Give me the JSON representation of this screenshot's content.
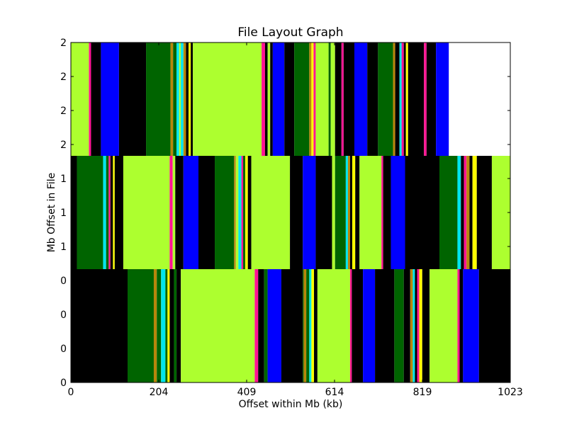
{
  "chart_data": {
    "type": "heatmap",
    "title": "File Layout Graph",
    "xlabel": "Offset within Mb (kb)",
    "ylabel": "Mb Offset in File",
    "xlim": [
      0,
      1023
    ],
    "x_ticks": [
      "0",
      "204",
      "409",
      "614",
      "819",
      "1023"
    ],
    "y_ticks": [
      "0",
      "0",
      "0",
      "0",
      "1",
      "1",
      "1",
      "2",
      "2",
      "2",
      "2"
    ],
    "palette": {
      "lime": "#adff2f",
      "green": "#006400",
      "blue": "#0000ff",
      "black": "#000000",
      "pink": "#ff1493",
      "cyan": "#00e5ee",
      "gold": "#b8860b",
      "yellow": "#ffff00",
      "white": "#ffffff"
    },
    "rows": [
      {
        "mb": 0,
        "segments": [
          [
            0,
            132,
            "black"
          ],
          [
            132,
            193,
            "green"
          ],
          [
            193,
            200,
            "gold"
          ],
          [
            200,
            210,
            "green"
          ],
          [
            210,
            220,
            "cyan"
          ],
          [
            220,
            225,
            "green"
          ],
          [
            225,
            230,
            "yellow"
          ],
          [
            230,
            240,
            "black"
          ],
          [
            240,
            246,
            "green"
          ],
          [
            246,
            256,
            "black"
          ],
          [
            256,
            428,
            "lime"
          ],
          [
            428,
            436,
            "pink"
          ],
          [
            436,
            450,
            "black"
          ],
          [
            450,
            458,
            "green"
          ],
          [
            458,
            490,
            "blue"
          ],
          [
            490,
            540,
            "black"
          ],
          [
            540,
            542,
            "green"
          ],
          [
            542,
            548,
            "gold"
          ],
          [
            548,
            555,
            "green"
          ],
          [
            555,
            560,
            "cyan"
          ],
          [
            560,
            566,
            "yellow"
          ],
          [
            566,
            574,
            "black"
          ],
          [
            574,
            650,
            "lime"
          ],
          [
            650,
            654,
            "pink"
          ],
          [
            654,
            680,
            "black"
          ],
          [
            680,
            708,
            "blue"
          ],
          [
            708,
            753,
            "black"
          ],
          [
            753,
            775,
            "green"
          ],
          [
            775,
            790,
            "black"
          ],
          [
            790,
            796,
            "gold"
          ],
          [
            796,
            801,
            "cyan"
          ],
          [
            801,
            806,
            "black"
          ],
          [
            806,
            811,
            "pink"
          ],
          [
            811,
            818,
            "yellow"
          ],
          [
            818,
            835,
            "black"
          ],
          [
            835,
            900,
            "lime"
          ],
          [
            900,
            905,
            "pink"
          ],
          [
            905,
            913,
            "black"
          ],
          [
            913,
            950,
            "blue"
          ],
          [
            950,
            1023,
            "black"
          ]
        ]
      },
      {
        "mb": 1,
        "segments": [
          [
            0,
            14,
            "black"
          ],
          [
            14,
            75,
            "green"
          ],
          [
            75,
            82,
            "cyan"
          ],
          [
            82,
            88,
            "green"
          ],
          [
            88,
            92,
            "pink"
          ],
          [
            92,
            98,
            "black"
          ],
          [
            98,
            102,
            "yellow"
          ],
          [
            102,
            122,
            "black"
          ],
          [
            122,
            230,
            "lime"
          ],
          [
            230,
            237,
            "pink"
          ],
          [
            237,
            243,
            "lime"
          ],
          [
            243,
            262,
            "black"
          ],
          [
            262,
            297,
            "blue"
          ],
          [
            297,
            335,
            "black"
          ],
          [
            335,
            380,
            "green"
          ],
          [
            380,
            384,
            "gold"
          ],
          [
            384,
            390,
            "lime"
          ],
          [
            390,
            397,
            "cyan"
          ],
          [
            397,
            401,
            "pink"
          ],
          [
            401,
            406,
            "green"
          ],
          [
            406,
            412,
            "yellow"
          ],
          [
            412,
            420,
            "black"
          ],
          [
            420,
            510,
            "lime"
          ],
          [
            510,
            540,
            "black"
          ],
          [
            540,
            570,
            "blue"
          ],
          [
            570,
            608,
            "black"
          ],
          [
            608,
            615,
            "lime"
          ],
          [
            615,
            640,
            "green"
          ],
          [
            640,
            645,
            "cyan"
          ],
          [
            645,
            650,
            "gold"
          ],
          [
            650,
            655,
            "black"
          ],
          [
            655,
            662,
            "yellow"
          ],
          [
            662,
            672,
            "black"
          ],
          [
            672,
            723,
            "lime"
          ],
          [
            723,
            727,
            "pink"
          ],
          [
            727,
            745,
            "black"
          ],
          [
            745,
            778,
            "blue"
          ],
          [
            778,
            858,
            "black"
          ],
          [
            858,
            900,
            "green"
          ],
          [
            900,
            908,
            "cyan"
          ],
          [
            908,
            915,
            "black"
          ],
          [
            915,
            921,
            "pink"
          ],
          [
            921,
            928,
            "gold"
          ],
          [
            928,
            935,
            "black"
          ],
          [
            935,
            945,
            "yellow"
          ],
          [
            945,
            980,
            "black"
          ],
          [
            980,
            1023,
            "lime"
          ]
        ]
      },
      {
        "mb": 2,
        "segments": [
          [
            0,
            42,
            "lime"
          ],
          [
            42,
            47,
            "pink"
          ],
          [
            47,
            70,
            "black"
          ],
          [
            70,
            112,
            "blue"
          ],
          [
            112,
            175,
            "black"
          ],
          [
            175,
            232,
            "green"
          ],
          [
            232,
            238,
            "gold"
          ],
          [
            238,
            246,
            "green"
          ],
          [
            246,
            252,
            "cyan"
          ],
          [
            252,
            256,
            "lime"
          ],
          [
            256,
            262,
            "cyan"
          ],
          [
            262,
            268,
            "gold"
          ],
          [
            268,
            274,
            "black"
          ],
          [
            274,
            279,
            "yellow"
          ],
          [
            279,
            284,
            "black"
          ],
          [
            284,
            444,
            "lime"
          ],
          [
            444,
            452,
            "pink"
          ],
          [
            452,
            458,
            "black"
          ],
          [
            458,
            464,
            "lime"
          ],
          [
            464,
            470,
            "black"
          ],
          [
            470,
            497,
            "blue"
          ],
          [
            497,
            520,
            "black"
          ],
          [
            520,
            555,
            "green"
          ],
          [
            555,
            560,
            "gold"
          ],
          [
            560,
            565,
            "yellow"
          ],
          [
            565,
            570,
            "pink"
          ],
          [
            570,
            600,
            "lime"
          ],
          [
            600,
            605,
            "green"
          ],
          [
            605,
            615,
            "lime"
          ],
          [
            615,
            630,
            "black"
          ],
          [
            630,
            635,
            "pink"
          ],
          [
            635,
            660,
            "black"
          ],
          [
            660,
            690,
            "blue"
          ],
          [
            690,
            715,
            "black"
          ],
          [
            715,
            750,
            "green"
          ],
          [
            750,
            755,
            "gold"
          ],
          [
            755,
            765,
            "black"
          ],
          [
            765,
            770,
            "cyan"
          ],
          [
            770,
            775,
            "pink"
          ],
          [
            775,
            780,
            "black"
          ],
          [
            780,
            785,
            "yellow"
          ],
          [
            785,
            822,
            "black"
          ],
          [
            822,
            828,
            "pink"
          ],
          [
            828,
            850,
            "black"
          ],
          [
            850,
            880,
            "blue"
          ],
          [
            880,
            1023,
            "white"
          ]
        ]
      }
    ]
  }
}
